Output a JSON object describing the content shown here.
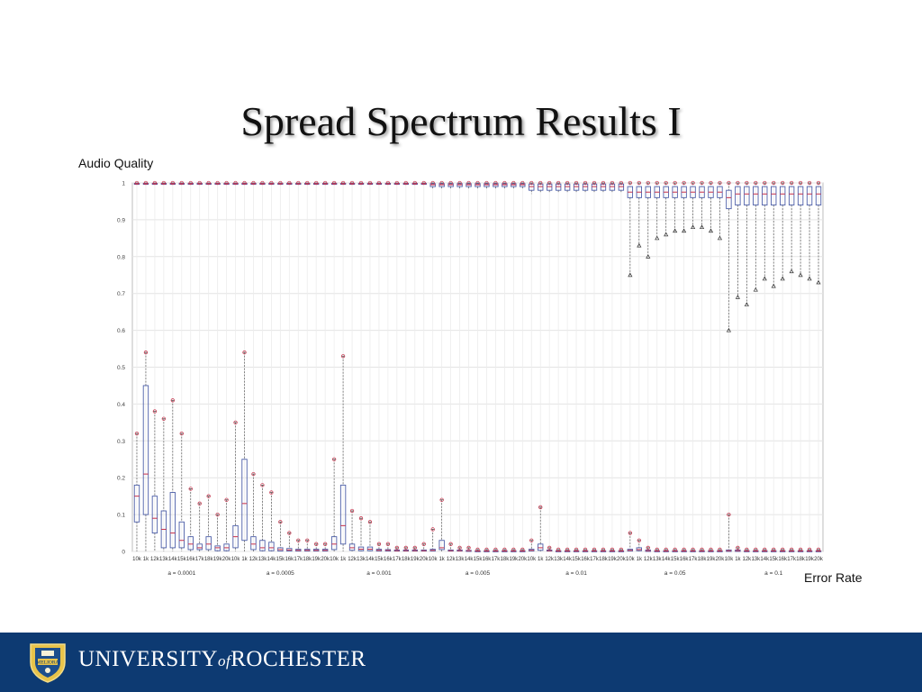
{
  "slide": {
    "title": "Spread Spectrum Results I",
    "ylabel": "Audio Quality",
    "xlabel": "Error Rate"
  },
  "footer": {
    "seal_text": "MELIORA",
    "university_pre": "UNIVERSITY",
    "university_of": "of",
    "university_post": "ROCHESTER"
  },
  "colors": {
    "footer_bg": "#0d3a72",
    "box": "#4c5ea8",
    "median": "#c8304a",
    "grid": "#e4e4e4"
  },
  "chart_data": {
    "type": "boxplot",
    "ylabel": "Audio Quality",
    "xlabel": "Error Rate",
    "ylim": [
      0,
      1
    ],
    "yticks": [
      0,
      0.1,
      0.2,
      0.3,
      0.4,
      0.5,
      0.6,
      0.7,
      0.8,
      0.9,
      1
    ],
    "ytick_labels": [
      "0",
      "0.1",
      "0.2",
      "0.3",
      "0.4",
      "0.5",
      "0.6",
      "0.7",
      "0.8",
      "0.9",
      "1"
    ],
    "grid": true,
    "category_labels": [
      "10k",
      "1k",
      "12k",
      "13k",
      "14k",
      "15k",
      "16k",
      "17k",
      "18k",
      "19k",
      "20k"
    ],
    "groups": [
      {
        "label": "a = 0.0001",
        "boxes": [
          {
            "q1": 0.08,
            "median": 0.15,
            "q3": 0.18,
            "max": 0.32
          },
          {
            "q1": 0.1,
            "median": 0.21,
            "q3": 0.45,
            "max": 0.54
          },
          {
            "q1": 0.05,
            "median": 0.09,
            "q3": 0.15,
            "max": 0.38
          },
          {
            "q1": 0.01,
            "median": 0.06,
            "q3": 0.11,
            "max": 0.36
          },
          {
            "q1": 0.01,
            "median": 0.05,
            "q3": 0.16,
            "max": 0.41
          },
          {
            "q1": 0.01,
            "median": 0.03,
            "q3": 0.08,
            "max": 0.32
          },
          {
            "q1": 0.005,
            "median": 0.02,
            "q3": 0.04,
            "max": 0.17
          },
          {
            "q1": 0.005,
            "median": 0.01,
            "q3": 0.02,
            "max": 0.13
          },
          {
            "q1": 0.005,
            "median": 0.02,
            "q3": 0.04,
            "max": 0.15
          },
          {
            "q1": 0.002,
            "median": 0.01,
            "q3": 0.015,
            "max": 0.1
          },
          {
            "q1": 0.002,
            "median": 0.01,
            "q3": 0.02,
            "max": 0.14
          }
        ]
      },
      {
        "label": "a = 0.0005",
        "boxes": [
          {
            "q1": 0.01,
            "median": 0.04,
            "q3": 0.07,
            "max": 0.35
          },
          {
            "q1": 0.03,
            "median": 0.13,
            "q3": 0.25,
            "max": 0.54
          },
          {
            "q1": 0.005,
            "median": 0.02,
            "q3": 0.04,
            "max": 0.21
          },
          {
            "q1": 0.002,
            "median": 0.01,
            "q3": 0.03,
            "max": 0.18
          },
          {
            "q1": 0.002,
            "median": 0.01,
            "q3": 0.025,
            "max": 0.16
          },
          {
            "q1": 0.001,
            "median": 0.005,
            "q3": 0.01,
            "max": 0.08
          },
          {
            "q1": 0.001,
            "median": 0.004,
            "q3": 0.008,
            "max": 0.05
          },
          {
            "q1": 0.001,
            "median": 0.003,
            "q3": 0.006,
            "max": 0.03
          },
          {
            "q1": 0.001,
            "median": 0.003,
            "q3": 0.006,
            "max": 0.03
          },
          {
            "q1": 0.001,
            "median": 0.003,
            "q3": 0.006,
            "max": 0.02
          },
          {
            "q1": 0.001,
            "median": 0.003,
            "q3": 0.006,
            "max": 0.02
          }
        ]
      },
      {
        "label": "a = 0.001",
        "boxes": [
          {
            "q1": 0.005,
            "median": 0.02,
            "q3": 0.04,
            "max": 0.25
          },
          {
            "q1": 0.02,
            "median": 0.07,
            "q3": 0.18,
            "max": 0.53
          },
          {
            "q1": 0.003,
            "median": 0.01,
            "q3": 0.02,
            "max": 0.11
          },
          {
            "q1": 0.002,
            "median": 0.006,
            "q3": 0.012,
            "max": 0.09
          },
          {
            "q1": 0.002,
            "median": 0.006,
            "q3": 0.012,
            "max": 0.08
          },
          {
            "q1": 0.001,
            "median": 0.003,
            "q3": 0.006,
            "max": 0.02
          },
          {
            "q1": 0.001,
            "median": 0.003,
            "q3": 0.005,
            "max": 0.02
          },
          {
            "q1": 0.001,
            "median": 0.002,
            "q3": 0.004,
            "max": 0.01
          },
          {
            "q1": 0.001,
            "median": 0.002,
            "q3": 0.004,
            "max": 0.01
          },
          {
            "q1": 0.001,
            "median": 0.002,
            "q3": 0.004,
            "max": 0.01
          },
          {
            "q1": 0.001,
            "median": 0.002,
            "q3": 0.004,
            "max": 0.02
          }
        ]
      },
      {
        "label": "a = 0.005",
        "boxes": [
          {
            "q1": 0.001,
            "median": 0.003,
            "q3": 0.006,
            "max": 0.06
          },
          {
            "q1": 0.005,
            "median": 0.01,
            "q3": 0.03,
            "max": 0.14
          },
          {
            "q1": 0.001,
            "median": 0.002,
            "q3": 0.004,
            "max": 0.02
          },
          {
            "q1": 0.001,
            "median": 0.002,
            "q3": 0.004,
            "max": 0.01
          },
          {
            "q1": 0.001,
            "median": 0.002,
            "q3": 0.003,
            "max": 0.01
          },
          {
            "q1": 0,
            "median": 0.001,
            "q3": 0.002,
            "max": 0.005
          },
          {
            "q1": 0,
            "median": 0.001,
            "q3": 0.002,
            "max": 0.005
          },
          {
            "q1": 0,
            "median": 0.001,
            "q3": 0.002,
            "max": 0.005
          },
          {
            "q1": 0,
            "median": 0.001,
            "q3": 0.002,
            "max": 0.005
          },
          {
            "q1": 0,
            "median": 0.001,
            "q3": 0.002,
            "max": 0.005
          },
          {
            "q1": 0,
            "median": 0.001,
            "q3": 0.002,
            "max": 0.005
          }
        ]
      },
      {
        "label": "a = 0.01",
        "boxes": [
          {
            "q1": 0.001,
            "median": 0.003,
            "q3": 0.006,
            "max": 0.03
          },
          {
            "q1": 0.003,
            "median": 0.01,
            "q3": 0.02,
            "max": 0.12
          },
          {
            "q1": 0.001,
            "median": 0.002,
            "q3": 0.004,
            "max": 0.01
          },
          {
            "q1": 0,
            "median": 0.001,
            "q3": 0.002,
            "max": 0.005
          },
          {
            "q1": 0,
            "median": 0.001,
            "q3": 0.002,
            "max": 0.005
          },
          {
            "q1": 0,
            "median": 0.001,
            "q3": 0.002,
            "max": 0.005
          },
          {
            "q1": 0,
            "median": 0.001,
            "q3": 0.002,
            "max": 0.005
          },
          {
            "q1": 0,
            "median": 0.001,
            "q3": 0.002,
            "max": 0.005
          },
          {
            "q1": 0,
            "median": 0.001,
            "q3": 0.002,
            "max": 0.005
          },
          {
            "q1": 0,
            "median": 0.001,
            "q3": 0.002,
            "max": 0.005
          },
          {
            "q1": 0,
            "median": 0.001,
            "q3": 0.002,
            "max": 0.005
          }
        ]
      },
      {
        "label": "a = 0.05",
        "boxes": [
          {
            "q1": 0.001,
            "median": 0.003,
            "q3": 0.006,
            "max": 0.05
          },
          {
            "q1": 0.002,
            "median": 0.005,
            "q3": 0.01,
            "max": 0.03
          },
          {
            "q1": 0,
            "median": 0.002,
            "q3": 0.004,
            "max": 0.01
          },
          {
            "q1": 0,
            "median": 0.001,
            "q3": 0.002,
            "max": 0.005
          },
          {
            "q1": 0,
            "median": 0.001,
            "q3": 0.002,
            "max": 0.005
          },
          {
            "q1": 0,
            "median": 0.001,
            "q3": 0.002,
            "max": 0.005
          },
          {
            "q1": 0,
            "median": 0.001,
            "q3": 0.002,
            "max": 0.005
          },
          {
            "q1": 0,
            "median": 0.001,
            "q3": 0.002,
            "max": 0.005
          },
          {
            "q1": 0,
            "median": 0.001,
            "q3": 0.002,
            "max": 0.005
          },
          {
            "q1": 0,
            "median": 0.001,
            "q3": 0.002,
            "max": 0.005
          },
          {
            "q1": 0,
            "median": 0.001,
            "q3": 0.002,
            "max": 0.005
          }
        ]
      },
      {
        "label": "a = 0.1",
        "boxes": [
          {
            "q1": 0,
            "median": 0.002,
            "q3": 0.004,
            "max": 0.1
          },
          {
            "q1": 0,
            "median": 0.002,
            "q3": 0.004,
            "max": 0.01
          },
          {
            "q1": 0,
            "median": 0.001,
            "q3": 0.002,
            "max": 0.005
          },
          {
            "q1": 0,
            "median": 0.001,
            "q3": 0.002,
            "max": 0.005
          },
          {
            "q1": 0,
            "median": 0.001,
            "q3": 0.002,
            "max": 0.005
          },
          {
            "q1": 0,
            "median": 0.001,
            "q3": 0.002,
            "max": 0.005
          },
          {
            "q1": 0,
            "median": 0.001,
            "q3": 0.002,
            "max": 0.005
          },
          {
            "q1": 0,
            "median": 0.001,
            "q3": 0.002,
            "max": 0.005
          },
          {
            "q1": 0,
            "median": 0.001,
            "q3": 0.002,
            "max": 0.005
          },
          {
            "q1": 0,
            "median": 0.001,
            "q3": 0.002,
            "max": 0.005
          },
          {
            "q1": 0,
            "median": 0.001,
            "q3": 0.002,
            "max": 0.005
          }
        ]
      }
    ],
    "upper_series": [
      {
        "group": 0,
        "boxes": [
          {
            "min": 0.995,
            "q1": 0.997,
            "median": 0.998,
            "q3": 0.999,
            "max": 1
          }
        ]
      },
      {
        "group": 1,
        "boxes": [
          {
            "min": 0.995,
            "q1": 0.997,
            "median": 0.998,
            "q3": 0.999,
            "max": 1
          }
        ]
      },
      {
        "group": 2,
        "boxes": [
          {
            "min": 0.995,
            "q1": 0.997,
            "median": 0.998,
            "q3": 0.999,
            "max": 1
          }
        ]
      },
      {
        "group": 3,
        "boxes": [
          {
            "min": 0.985,
            "q1": 0.99,
            "median": 0.995,
            "q3": 0.998,
            "max": 1
          },
          {
            "min": 0.985,
            "q1": 0.99,
            "median": 0.995,
            "q3": 0.998,
            "max": 1
          },
          {
            "min": 0.985,
            "q1": 0.99,
            "median": 0.995,
            "q3": 0.998,
            "max": 1
          },
          {
            "min": 0.985,
            "q1": 0.99,
            "median": 0.995,
            "q3": 0.998,
            "max": 1
          },
          {
            "min": 0.985,
            "q1": 0.99,
            "median": 0.995,
            "q3": 0.998,
            "max": 1
          },
          {
            "min": 0.985,
            "q1": 0.99,
            "median": 0.995,
            "q3": 0.998,
            "max": 1
          },
          {
            "min": 0.985,
            "q1": 0.99,
            "median": 0.995,
            "q3": 0.998,
            "max": 1
          },
          {
            "min": 0.985,
            "q1": 0.99,
            "median": 0.995,
            "q3": 0.998,
            "max": 1
          },
          {
            "min": 0.985,
            "q1": 0.99,
            "median": 0.995,
            "q3": 0.998,
            "max": 1
          },
          {
            "min": 0.985,
            "q1": 0.99,
            "median": 0.995,
            "q3": 0.998,
            "max": 1
          },
          {
            "min": 0.985,
            "q1": 0.99,
            "median": 0.995,
            "q3": 0.998,
            "max": 1
          }
        ]
      },
      {
        "group": 4,
        "boxes": [
          {
            "min": 0.97,
            "q1": 0.98,
            "median": 0.99,
            "q3": 0.997,
            "max": 1
          },
          {
            "min": 0.975,
            "q1": 0.98,
            "median": 0.99,
            "q3": 0.997,
            "max": 1
          },
          {
            "min": 0.975,
            "q1": 0.98,
            "median": 0.99,
            "q3": 0.997,
            "max": 1
          },
          {
            "min": 0.975,
            "q1": 0.98,
            "median": 0.99,
            "q3": 0.997,
            "max": 1
          },
          {
            "min": 0.975,
            "q1": 0.98,
            "median": 0.99,
            "q3": 0.997,
            "max": 1
          },
          {
            "min": 0.975,
            "q1": 0.98,
            "median": 0.99,
            "q3": 0.997,
            "max": 1
          },
          {
            "min": 0.975,
            "q1": 0.98,
            "median": 0.99,
            "q3": 0.997,
            "max": 1
          },
          {
            "min": 0.975,
            "q1": 0.98,
            "median": 0.99,
            "q3": 0.997,
            "max": 1
          },
          {
            "min": 0.975,
            "q1": 0.98,
            "median": 0.99,
            "q3": 0.997,
            "max": 1
          },
          {
            "min": 0.975,
            "q1": 0.98,
            "median": 0.99,
            "q3": 0.997,
            "max": 1
          },
          {
            "min": 0.975,
            "q1": 0.98,
            "median": 0.99,
            "q3": 0.997,
            "max": 1
          }
        ]
      },
      {
        "group": 5,
        "boxes": [
          {
            "min": 0.75,
            "q1": 0.96,
            "median": 0.975,
            "q3": 0.99,
            "max": 1
          },
          {
            "min": 0.83,
            "q1": 0.96,
            "median": 0.975,
            "q3": 0.99,
            "max": 1
          },
          {
            "min": 0.8,
            "q1": 0.96,
            "median": 0.975,
            "q3": 0.99,
            "max": 1
          },
          {
            "min": 0.85,
            "q1": 0.96,
            "median": 0.975,
            "q3": 0.99,
            "max": 1
          },
          {
            "min": 0.86,
            "q1": 0.96,
            "median": 0.975,
            "q3": 0.99,
            "max": 1
          },
          {
            "min": 0.87,
            "q1": 0.96,
            "median": 0.975,
            "q3": 0.99,
            "max": 1
          },
          {
            "min": 0.87,
            "q1": 0.96,
            "median": 0.975,
            "q3": 0.99,
            "max": 1
          },
          {
            "min": 0.88,
            "q1": 0.96,
            "median": 0.975,
            "q3": 0.99,
            "max": 1
          },
          {
            "min": 0.88,
            "q1": 0.96,
            "median": 0.975,
            "q3": 0.99,
            "max": 1
          },
          {
            "min": 0.87,
            "q1": 0.96,
            "median": 0.975,
            "q3": 0.99,
            "max": 1
          },
          {
            "min": 0.85,
            "q1": 0.96,
            "median": 0.975,
            "q3": 0.99,
            "max": 1
          }
        ]
      },
      {
        "group": 6,
        "boxes": [
          {
            "min": 0.6,
            "q1": 0.93,
            "median": 0.96,
            "q3": 0.98,
            "max": 1
          },
          {
            "min": 0.69,
            "q1": 0.94,
            "median": 0.97,
            "q3": 0.99,
            "max": 1
          },
          {
            "min": 0.67,
            "q1": 0.94,
            "median": 0.97,
            "q3": 0.99,
            "max": 1
          },
          {
            "min": 0.71,
            "q1": 0.94,
            "median": 0.97,
            "q3": 0.99,
            "max": 1
          },
          {
            "min": 0.74,
            "q1": 0.94,
            "median": 0.97,
            "q3": 0.99,
            "max": 1
          },
          {
            "min": 0.72,
            "q1": 0.94,
            "median": 0.97,
            "q3": 0.99,
            "max": 1
          },
          {
            "min": 0.74,
            "q1": 0.94,
            "median": 0.97,
            "q3": 0.99,
            "max": 1
          },
          {
            "min": 0.76,
            "q1": 0.94,
            "median": 0.97,
            "q3": 0.99,
            "max": 1
          },
          {
            "min": 0.75,
            "q1": 0.94,
            "median": 0.97,
            "q3": 0.99,
            "max": 1
          },
          {
            "min": 0.74,
            "q1": 0.94,
            "median": 0.97,
            "q3": 0.99,
            "max": 1
          },
          {
            "min": 0.73,
            "q1": 0.94,
            "median": 0.97,
            "q3": 0.99,
            "max": 1
          }
        ]
      }
    ]
  }
}
